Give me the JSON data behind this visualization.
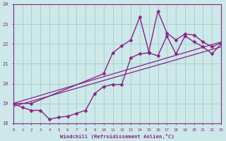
{
  "xlabel": "Windchill (Refroidissement éolien,°C)",
  "xlim": [
    0,
    23
  ],
  "ylim": [
    18,
    24
  ],
  "yticks": [
    18,
    19,
    20,
    21,
    22,
    23,
    24
  ],
  "xticks": [
    0,
    1,
    2,
    3,
    4,
    5,
    6,
    7,
    8,
    9,
    10,
    11,
    12,
    13,
    14,
    15,
    16,
    17,
    18,
    19,
    20,
    21,
    22,
    23
  ],
  "bg_color": "#cce8e8",
  "grid_color": "#aacccc",
  "line_color": "#882288",
  "series": [
    {
      "x": [
        0,
        1,
        2,
        3,
        4,
        5,
        6,
        7,
        8,
        9,
        10,
        11,
        12,
        13,
        14,
        15,
        16,
        17,
        18,
        19,
        20,
        21,
        22,
        23
      ],
      "y": [
        19.0,
        18.8,
        18.65,
        18.65,
        18.2,
        18.3,
        18.35,
        18.5,
        18.65,
        19.5,
        19.85,
        19.95,
        19.95,
        21.3,
        21.5,
        21.55,
        21.4,
        22.4,
        21.5,
        22.4,
        22.1,
        21.85,
        21.5,
        22.0
      ],
      "marker": "D",
      "markersize": 2.5,
      "linewidth": 1.0
    },
    {
      "x": [
        0,
        2,
        10,
        11,
        12,
        13,
        14,
        15,
        16,
        17,
        18,
        19,
        20,
        21,
        22,
        23
      ],
      "y": [
        19.0,
        19.0,
        20.5,
        21.55,
        21.9,
        22.2,
        23.35,
        21.6,
        23.65,
        22.55,
        22.2,
        22.5,
        22.45,
        22.1,
        21.85,
        22.05
      ],
      "marker": "D",
      "markersize": 2.5,
      "linewidth": 1.0
    },
    {
      "x": [
        0,
        23
      ],
      "y": [
        19.0,
        22.1
      ],
      "marker": null,
      "markersize": 0,
      "linewidth": 0.9
    },
    {
      "x": [
        0,
        23
      ],
      "y": [
        18.85,
        21.85
      ],
      "marker": null,
      "markersize": 0,
      "linewidth": 0.9
    }
  ]
}
